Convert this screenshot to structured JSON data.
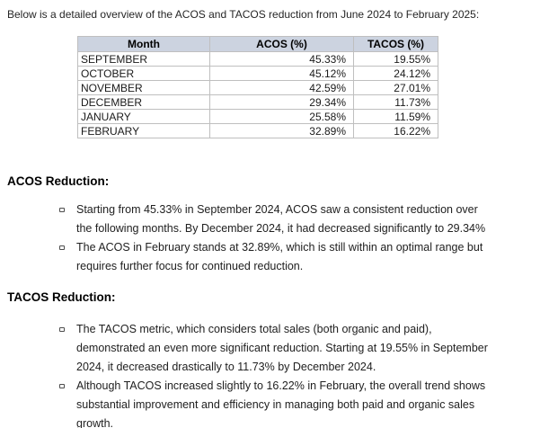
{
  "intro": "Below is a detailed overview of the ACOS and TACOS reduction from June 2024 to February 2025:",
  "table": {
    "headers": [
      "Month",
      "ACOS (%)",
      "TACOS (%)"
    ],
    "rows": [
      [
        "SEPTEMBER",
        "45.33%",
        "19.55%"
      ],
      [
        "OCTOBER",
        "45.12%",
        "24.12%"
      ],
      [
        "NOVEMBER",
        "42.59%",
        "27.01%"
      ],
      [
        "DECEMBER",
        "29.34%",
        "11.73%"
      ],
      [
        "JANUARY",
        "25.58%",
        "11.59%"
      ],
      [
        "FEBRUARY",
        "32.89%",
        "16.22%"
      ]
    ]
  },
  "sections": [
    {
      "heading": "ACOS Reduction:",
      "bullets": [
        "Starting from 45.33% in September 2024, ACOS saw a consistent reduction over the following months. By December 2024, it had decreased significantly to 29.34%",
        "The ACOS in February stands at 32.89%, which is still within an optimal range but requires further focus for continued reduction."
      ]
    },
    {
      "heading": "TACOS Reduction:",
      "bullets": [
        "The TACOS metric, which considers total sales (both organic and paid), demonstrated an even more significant reduction. Starting at 19.55% in September 2024, it decreased drastically to 11.73% by December 2024.",
        "Although TACOS increased slightly to 16.22% in February, the overall trend shows substantial improvement and efficiency in managing both paid and organic sales growth."
      ]
    }
  ],
  "colors": {
    "table_header_bg": "#ccd3e0",
    "table_border": "#bfbfbf",
    "text": "#222222"
  }
}
